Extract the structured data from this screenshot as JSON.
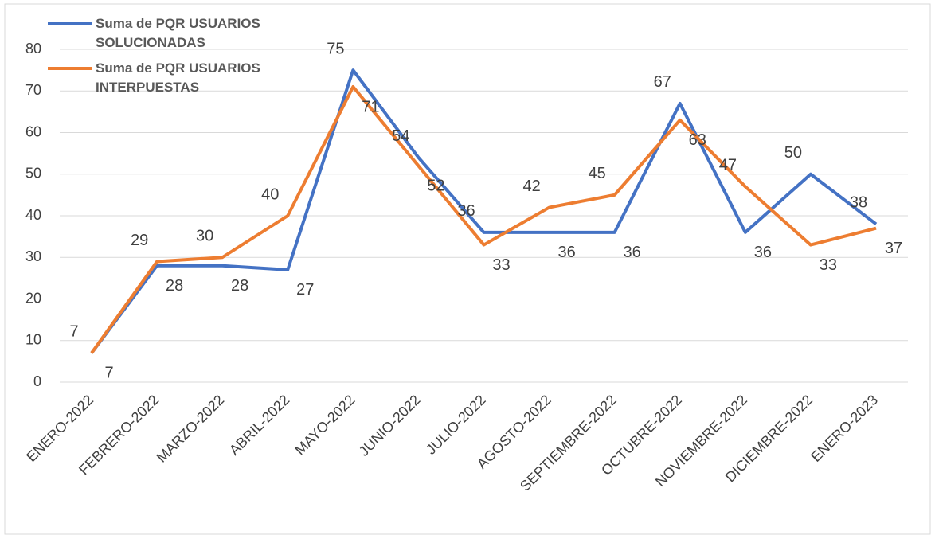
{
  "chart_data": {
    "type": "line",
    "categories": [
      "ENERO-2022",
      "FEBRERO-2022",
      "MARZO-2022",
      "ABRIL-2022",
      "MAYO-2022",
      "JUNIO-2022",
      "JULIO-2022",
      "AGOSTO-2022",
      "SEPTIEMBRE-2022",
      "OCTUBRE-2022",
      "NOVIEMBRE-2022",
      "DICIEMBRE-2022",
      "ENERO-2023"
    ],
    "series": [
      {
        "name": "Suma de PQR USUARIOS SOLUCIONADAS",
        "color": "#4472c4",
        "values": [
          7,
          28,
          28,
          27,
          75,
          54,
          36,
          36,
          36,
          67,
          36,
          50,
          38
        ]
      },
      {
        "name": "Suma de PQR USUARIOS INTERPUESTAS",
        "color": "#ed7d31",
        "values": [
          7,
          29,
          30,
          40,
          71,
          52,
          33,
          42,
          45,
          63,
          47,
          33,
          37
        ]
      }
    ],
    "ylim": [
      0,
      80
    ],
    "yticks": [
      0,
      10,
      20,
      30,
      40,
      50,
      60,
      70,
      80
    ],
    "grid": true,
    "legend": "top-left"
  }
}
